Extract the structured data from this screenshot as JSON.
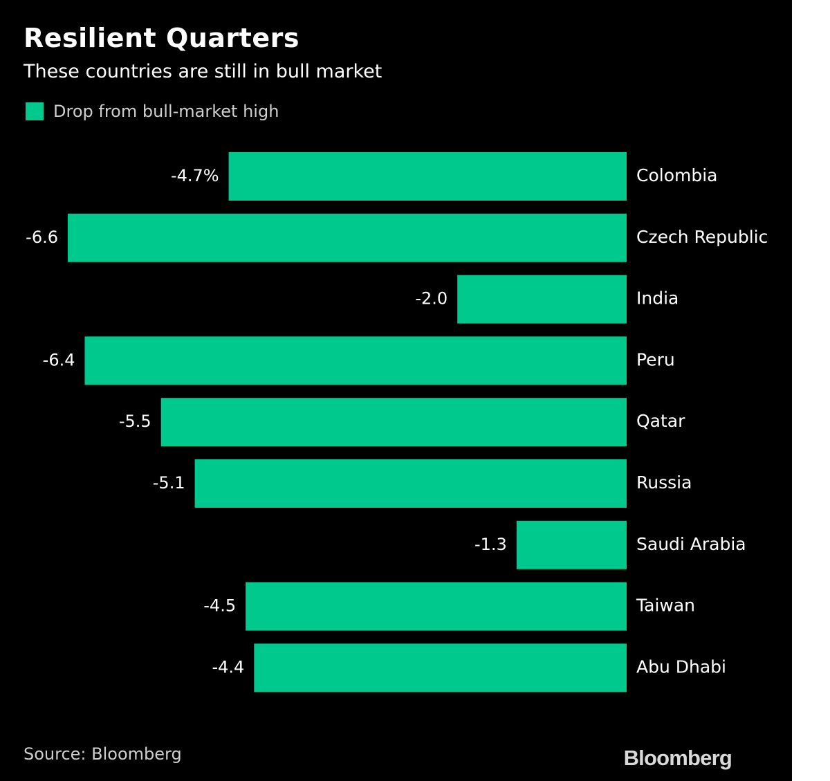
{
  "chart_data": {
    "type": "bar",
    "orientation": "horizontal",
    "title": "Resilient Quarters",
    "subtitle": "These countries are still in bull market",
    "categories": [
      "Colombia",
      "Czech Republic",
      "India",
      "Peru",
      "Qatar",
      "Russia",
      "Saudi Arabia",
      "Taiwan",
      "Abu Dhabi"
    ],
    "series": [
      {
        "name": "Drop from bull-market high",
        "values": [
          -4.7,
          -6.6,
          -2.0,
          -6.4,
          -5.5,
          -5.1,
          -1.3,
          -4.5,
          -4.4
        ],
        "labels": [
          "-4.7%",
          "-6.6",
          "-2.0",
          "-6.4",
          "-5.5",
          "-5.1",
          "-1.3",
          "-4.5",
          "-4.4"
        ]
      }
    ],
    "xlim": [
      -6.6,
      0
    ],
    "grid": false,
    "legend_position": "top-left",
    "xlabel": "",
    "ylabel": ""
  },
  "source": "Source: Bloomberg",
  "brand": "Bloomberg",
  "colors": {
    "background": "#000000",
    "bar": "#00c98e",
    "text": "#ffffff",
    "muted_text": "#cfcfcf"
  }
}
